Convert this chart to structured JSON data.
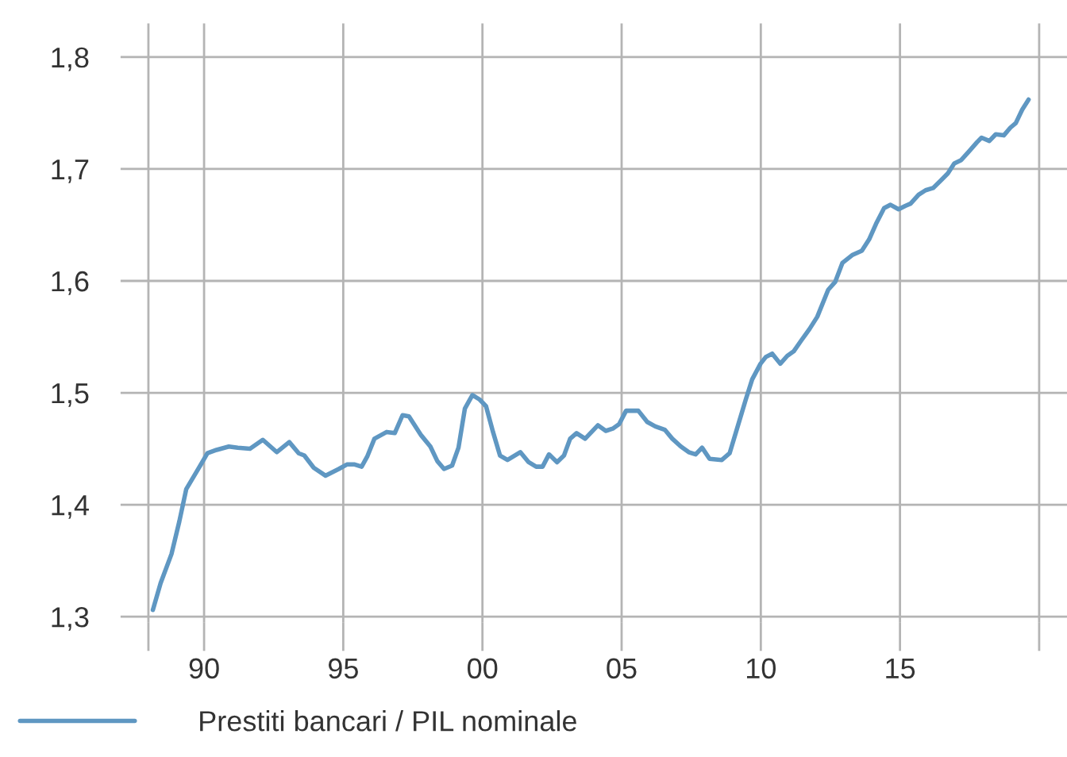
{
  "chart_data": {
    "type": "line",
    "x": [
      1988.16,
      1988.44,
      1988.83,
      1989.11,
      1989.36,
      1989.72,
      1990.12,
      1990.45,
      1990.89,
      1991.21,
      1991.65,
      1992.11,
      1992.61,
      1993.06,
      1993.4,
      1993.6,
      1993.94,
      1994.36,
      1994.84,
      1995.13,
      1995.41,
      1995.66,
      1995.86,
      1996.12,
      1996.56,
      1996.85,
      1997.13,
      1997.36,
      1997.8,
      1998.13,
      1998.38,
      1998.62,
      1998.91,
      1999.14,
      1999.37,
      1999.64,
      1999.9,
      2000.13,
      2000.38,
      2000.63,
      2000.9,
      2001.36,
      2001.66,
      2001.93,
      2002.16,
      2002.39,
      2002.68,
      2002.93,
      2003.15,
      2003.38,
      2003.69,
      2004.15,
      2004.43,
      2004.68,
      2004.91,
      2005.16,
      2005.6,
      2005.92,
      2006.21,
      2006.55,
      2006.82,
      2007.13,
      2007.41,
      2007.66,
      2007.89,
      2008.16,
      2008.6,
      2008.88,
      2009.17,
      2009.46,
      2009.69,
      2009.99,
      2010.18,
      2010.41,
      2010.7,
      2010.95,
      2011.18,
      2011.46,
      2011.75,
      2012.03,
      2012.42,
      2012.67,
      2012.93,
      2013.28,
      2013.63,
      2013.89,
      2014.14,
      2014.43,
      2014.66,
      2014.95,
      2015.19,
      2015.38,
      2015.67,
      2015.92,
      2016.19,
      2016.48,
      2016.72,
      2016.95,
      2017.2,
      2017.49,
      2017.77,
      2017.93,
      2018.21,
      2018.44,
      2018.73,
      2018.97,
      2019.16,
      2019.39,
      2019.62
    ],
    "series": [
      {
        "name": "Prestiti bancari / PIL nominale",
        "color": "#5f97c2",
        "values": [
          1.306,
          1.33,
          1.356,
          1.385,
          1.414,
          1.429,
          1.446,
          1.449,
          1.452,
          1.451,
          1.45,
          1.458,
          1.447,
          1.456,
          1.446,
          1.444,
          1.433,
          1.426,
          1.432,
          1.436,
          1.436,
          1.434,
          1.443,
          1.459,
          1.465,
          1.464,
          1.48,
          1.479,
          1.462,
          1.452,
          1.439,
          1.432,
          1.435,
          1.451,
          1.486,
          1.498,
          1.494,
          1.488,
          1.465,
          1.444,
          1.44,
          1.447,
          1.438,
          1.434,
          1.434,
          1.445,
          1.438,
          1.444,
          1.459,
          1.464,
          1.459,
          1.471,
          1.466,
          1.468,
          1.472,
          1.484,
          1.484,
          1.474,
          1.47,
          1.467,
          1.459,
          1.452,
          1.447,
          1.445,
          1.451,
          1.441,
          1.44,
          1.446,
          1.47,
          1.494,
          1.512,
          1.526,
          1.532,
          1.535,
          1.526,
          1.533,
          1.537,
          1.547,
          1.557,
          1.568,
          1.592,
          1.599,
          1.616,
          1.623,
          1.627,
          1.637,
          1.651,
          1.665,
          1.668,
          1.664,
          1.667,
          1.669,
          1.677,
          1.681,
          1.683,
          1.69,
          1.696,
          1.705,
          1.708,
          1.716,
          1.724,
          1.728,
          1.725,
          1.731,
          1.73,
          1.737,
          1.741,
          1.753,
          1.762
        ]
      }
    ],
    "xlim": [
      1987,
      2021
    ],
    "xticks": [
      {
        "value": 1988,
        "label": null
      },
      {
        "value": 1990,
        "label": "90"
      },
      {
        "value": 1995,
        "label": "95"
      },
      {
        "value": 2000,
        "label": "00"
      },
      {
        "value": 2005,
        "label": "05"
      },
      {
        "value": 2010,
        "label": "10"
      },
      {
        "value": 2015,
        "label": "15"
      },
      {
        "value": 2020,
        "label": null
      }
    ],
    "ylim": [
      1.295,
      1.83
    ],
    "yticks": [
      {
        "value": 1.3,
        "label": "1,3"
      },
      {
        "value": 1.4,
        "label": "1,4"
      },
      {
        "value": 1.5,
        "label": "1,5"
      },
      {
        "value": 1.6,
        "label": "1,6"
      },
      {
        "value": 1.7,
        "label": "1,7"
      },
      {
        "value": 1.8,
        "label": "1,8"
      }
    ],
    "grid": true,
    "legend": "bottom left",
    "marker": "none",
    "line_style": "solid"
  }
}
